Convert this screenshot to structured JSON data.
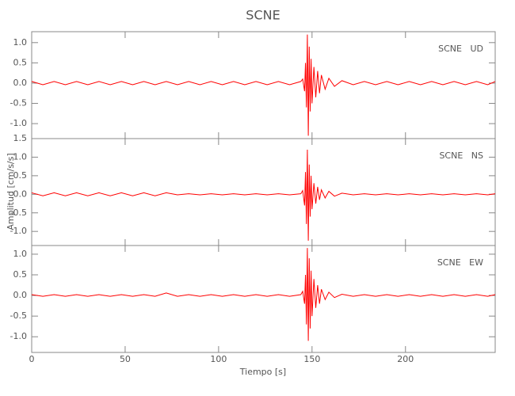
{
  "chart_data": [
    {
      "type": "line",
      "title": "SCNE",
      "annotation": "SCNE   UD",
      "color": "#ff0000",
      "xlim": [
        0,
        248
      ],
      "ylim": [
        -1.37,
        1.27
      ],
      "yticks": [
        {
          "value": -1,
          "label": "-1.0"
        },
        -0.5,
        {
          "value": 0,
          "label": "0.0"
        },
        0.5,
        {
          "value": 1,
          "label": "1.0"
        }
      ],
      "x": [
        0,
        6,
        12,
        18,
        24,
        30,
        36,
        42,
        48,
        54,
        60,
        66,
        72,
        78,
        84,
        90,
        96,
        102,
        108,
        114,
        120,
        126,
        132,
        138,
        144,
        145,
        146,
        146.5,
        147,
        147.5,
        148,
        148.5,
        149,
        149.5,
        150,
        151,
        152,
        153,
        154,
        155,
        157,
        159,
        162,
        166,
        172,
        178,
        184,
        190,
        196,
        202,
        208,
        214,
        220,
        226,
        232,
        238,
        244,
        248
      ],
      "values": [
        0.04,
        -0.04,
        0.04,
        -0.04,
        0.04,
        -0.04,
        0.04,
        -0.04,
        0.04,
        -0.04,
        0.04,
        -0.04,
        0.04,
        -0.04,
        0.04,
        -0.04,
        0.04,
        -0.04,
        0.04,
        -0.04,
        0.04,
        -0.04,
        0.04,
        -0.04,
        0.04,
        0.1,
        -0.2,
        0.5,
        -0.6,
        1.2,
        -1.3,
        0.9,
        -0.7,
        0.6,
        -0.5,
        0.4,
        -0.35,
        0.3,
        -0.25,
        0.2,
        -0.15,
        0.12,
        -0.08,
        0.06,
        -0.04,
        0.04,
        -0.04,
        0.04,
        -0.04,
        0.04,
        -0.04,
        0.04,
        -0.04,
        0.04,
        -0.04,
        0.04,
        -0.04,
        0.04
      ]
    },
    {
      "type": "line",
      "annotation": "SCNE   NS",
      "y_label": "Amplitud [cm/s/s]",
      "color": "#ff0000",
      "xlim": [
        0,
        248
      ],
      "ylim": [
        -1.38,
        1.5
      ],
      "yticks": [
        {
          "value": -1,
          "label": "-1.0"
        },
        -0.5,
        {
          "value": 0,
          "label": "0.0"
        },
        0.5,
        {
          "value": 1,
          "label": "1.0"
        },
        1.5
      ],
      "x": [
        0,
        6,
        12,
        18,
        24,
        30,
        36,
        42,
        48,
        54,
        60,
        66,
        72,
        78,
        84,
        90,
        96,
        102,
        108,
        114,
        120,
        126,
        132,
        138,
        144,
        145,
        146,
        146.5,
        147,
        147.5,
        148,
        148.5,
        149,
        149.5,
        150,
        151,
        152,
        153,
        154,
        155,
        157,
        159,
        162,
        166,
        172,
        178,
        184,
        190,
        196,
        202,
        208,
        214,
        220,
        226,
        232,
        238,
        244,
        248
      ],
      "values": [
        0.04,
        -0.04,
        0.04,
        -0.04,
        0.04,
        -0.04,
        0.04,
        -0.04,
        0.04,
        -0.04,
        0.04,
        -0.04,
        0.04,
        -0.015,
        0.015,
        -0.015,
        0.015,
        -0.015,
        0.015,
        -0.015,
        0.015,
        -0.015,
        0.015,
        -0.015,
        0.015,
        0.1,
        -0.3,
        0.6,
        -0.8,
        1.2,
        -1.25,
        0.8,
        -0.6,
        0.5,
        -0.4,
        0.3,
        -0.25,
        0.2,
        -0.15,
        0.12,
        -0.1,
        0.08,
        -0.05,
        0.03,
        -0.015,
        0.015,
        -0.015,
        0.015,
        -0.015,
        0.015,
        -0.015,
        0.015,
        -0.015,
        0.015,
        -0.015,
        0.015,
        -0.015,
        0.015
      ]
    },
    {
      "type": "line",
      "annotation": "SCNE   EW",
      "x_label": "Tiempo [s]",
      "color": "#ff0000",
      "xlim": [
        0,
        248
      ],
      "ylim": [
        -1.38,
        1.21
      ],
      "xticks": [
        0,
        50,
        100,
        150,
        200
      ],
      "yticks": [
        {
          "value": -1,
          "label": "-1.0"
        },
        -0.5,
        {
          "value": 0,
          "label": "0.0"
        },
        0.5,
        {
          "value": 1,
          "label": "1.0"
        }
      ],
      "x": [
        0,
        6,
        12,
        18,
        24,
        30,
        36,
        42,
        48,
        54,
        60,
        66,
        72,
        78,
        84,
        90,
        96,
        102,
        108,
        114,
        120,
        126,
        132,
        138,
        144,
        145,
        146,
        146.5,
        147,
        147.5,
        148,
        148.5,
        149,
        149.5,
        150,
        151,
        152,
        153,
        154,
        155,
        157,
        159,
        162,
        166,
        172,
        178,
        184,
        190,
        196,
        202,
        208,
        214,
        220,
        226,
        232,
        238,
        244,
        248
      ],
      "values": [
        0.02,
        -0.02,
        0.02,
        -0.02,
        0.02,
        -0.02,
        0.02,
        -0.02,
        0.02,
        -0.02,
        0.02,
        -0.02,
        0.06,
        -0.02,
        0.02,
        -0.02,
        0.02,
        -0.02,
        0.02,
        -0.02,
        0.02,
        -0.02,
        0.02,
        -0.02,
        0.02,
        0.1,
        -0.2,
        0.5,
        -0.7,
        1.15,
        -1.1,
        0.9,
        -0.8,
        0.6,
        -0.5,
        0.4,
        -0.3,
        0.25,
        -0.2,
        0.15,
        -0.1,
        0.08,
        -0.05,
        0.03,
        -0.02,
        0.02,
        -0.02,
        0.02,
        -0.02,
        0.02,
        -0.02,
        0.02,
        -0.02,
        0.02,
        -0.02,
        0.02,
        -0.02,
        0.02
      ]
    }
  ]
}
